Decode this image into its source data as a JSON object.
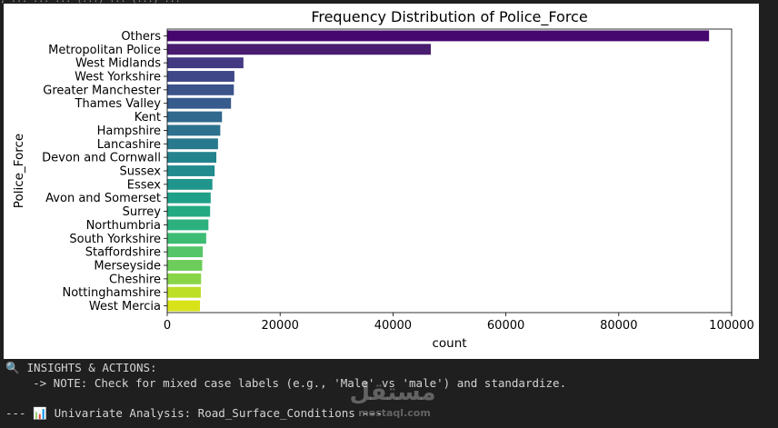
{
  "notebook_top_fragment": ", ... ... ... (...) ... (...) ...",
  "chart_data": {
    "type": "bar",
    "orientation": "horizontal",
    "title": "Frequency Distribution of Police_Force",
    "xlabel": "count",
    "ylabel": "Police_Force",
    "categories": [
      "Others",
      "Metropolitan Police",
      "West Midlands",
      "West Yorkshire",
      "Greater Manchester",
      "Thames Valley",
      "Kent",
      "Hampshire",
      "Lancashire",
      "Devon and Cornwall",
      "Sussex",
      "Essex",
      "Avon and Somerset",
      "Surrey",
      "Northumbria",
      "South Yorkshire",
      "Staffordshire",
      "Merseyside",
      "Cheshire",
      "Nottinghamshire",
      "West Mercia"
    ],
    "values": [
      96000,
      46700,
      13500,
      11900,
      11800,
      11300,
      9700,
      9400,
      9000,
      8700,
      8400,
      8000,
      7700,
      7600,
      7300,
      6900,
      6300,
      6200,
      6000,
      5950,
      5800
    ],
    "xlim": [
      0,
      100000
    ],
    "xticks": [
      0,
      20000,
      40000,
      60000,
      80000,
      100000
    ],
    "xtick_labels": [
      "0",
      "20000",
      "40000",
      "60000",
      "80000",
      "100000"
    ],
    "palette": "viridis",
    "colors": [
      "#46086e",
      "#481d6f",
      "#443983",
      "#3f4788",
      "#3b528b",
      "#375b8d",
      "#31688e",
      "#2d718e",
      "#29798e",
      "#25838e",
      "#228b8d",
      "#1f958b",
      "#1fa088",
      "#24aa83",
      "#2cb17e",
      "#3dbc74",
      "#54c568",
      "#6ccd5a",
      "#89d548",
      "#bddf26",
      "#d8e219"
    ],
    "grid": false
  },
  "output": {
    "insights_icon": "magnifier-icon",
    "insights_header": "INSIGHTS & ACTIONS:",
    "note_line": "    -> NOTE: Check for mixed case labels (e.g., 'Male' vs 'male') and standardize.",
    "next_prefix": "--- ",
    "next_icon": "bar-chart-icon",
    "next_label": "Univariate Analysis: Road_Surface_Conditions ---"
  },
  "watermark": {
    "arabic": "مستقل",
    "latin": "mostaql.com"
  }
}
